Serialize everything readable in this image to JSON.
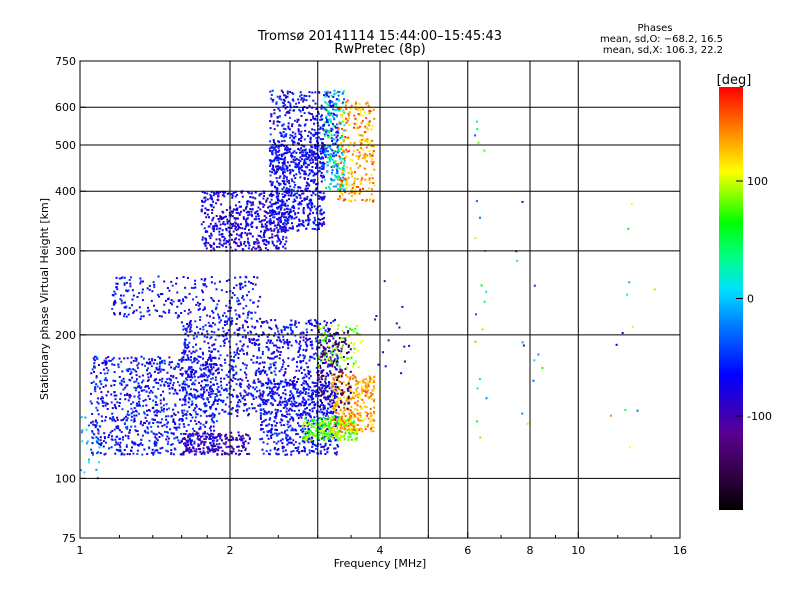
{
  "chart_data": {
    "type": "scatter",
    "title": "Tromsø 20141114  15:44:00–15:45:43",
    "subtitle": "RwPretec (8p)",
    "xlabel": "Frequency [MHz]",
    "ylabel": "Stationary phase Virtual Height [km]",
    "xscale": "log",
    "yscale": "log",
    "xlim": [
      1,
      16
    ],
    "ylim": [
      75,
      750
    ],
    "xticks": [
      1,
      2,
      4,
      6,
      8,
      10,
      16
    ],
    "yticks": [
      75,
      100,
      200,
      300,
      400,
      500,
      600,
      750
    ],
    "grid": true,
    "phases": {
      "heading": "Phases",
      "line_o": "mean, sd,O: −68.2, 16.5",
      "line_x": "mean, sd,X: 106.3, 22.2"
    },
    "colorbar": {
      "label": "[deg]",
      "min": -180,
      "max": 180,
      "ticks": [
        100,
        0,
        -100
      ],
      "colormap": "rainbow (black–purple–blue–cyan–green–yellow–red)"
    },
    "clusters": [
      {
        "x": [
          1.0,
          1.1
        ],
        "y": [
          100,
          135
        ],
        "n": 25,
        "phase": [
          -40,
          30
        ]
      },
      {
        "x": [
          1.05,
          1.9
        ],
        "y": [
          112,
          180
        ],
        "n": 900,
        "phase": [
          -95,
          -35
        ]
      },
      {
        "x": [
          1.6,
          2.2
        ],
        "y": [
          112,
          125
        ],
        "n": 180,
        "phase": [
          -110,
          -80
        ]
      },
      {
        "x": [
          1.6,
          3.3
        ],
        "y": [
          135,
          215
        ],
        "n": 1000,
        "phase": [
          -95,
          -40
        ]
      },
      {
        "x": [
          2.3,
          3.3
        ],
        "y": [
          112,
          160
        ],
        "n": 500,
        "phase": [
          -90,
          -40
        ]
      },
      {
        "x": [
          2.8,
          3.6
        ],
        "y": [
          120,
          135
        ],
        "n": 250,
        "phase": [
          50,
          110
        ]
      },
      {
        "x": [
          3.2,
          3.9
        ],
        "y": [
          125,
          165
        ],
        "n": 300,
        "phase": [
          110,
          160
        ]
      },
      {
        "x": [
          3.0,
          3.5
        ],
        "y": [
          140,
          205
        ],
        "n": 150,
        "phase": [
          -170,
          -115
        ]
      },
      {
        "x": [
          3.0,
          3.7
        ],
        "y": [
          170,
          210
        ],
        "n": 80,
        "phase": [
          60,
          110
        ]
      },
      {
        "x": [
          1.15,
          2.3
        ],
        "y": [
          215,
          265
        ],
        "n": 260,
        "phase": [
          -90,
          -40
        ]
      },
      {
        "x": [
          1.75,
          2.6
        ],
        "y": [
          300,
          400
        ],
        "n": 500,
        "phase": [
          -110,
          -50
        ]
      },
      {
        "x": [
          2.4,
          3.1
        ],
        "y": [
          330,
          500
        ],
        "n": 550,
        "phase": [
          -95,
          -40
        ]
      },
      {
        "x": [
          2.4,
          3.3
        ],
        "y": [
          440,
          650
        ],
        "n": 450,
        "phase": [
          -100,
          -35
        ]
      },
      {
        "x": [
          3.1,
          3.4
        ],
        "y": [
          400,
          650
        ],
        "n": 180,
        "phase": [
          -40,
          60
        ]
      },
      {
        "x": [
          3.3,
          3.9
        ],
        "y": [
          380,
          620
        ],
        "n": 260,
        "phase": [
          100,
          170
        ]
      },
      {
        "x": [
          3.8,
          4.6
        ],
        "y": [
          150,
          260
        ],
        "n": 14,
        "phase": [
          -130,
          -80
        ]
      },
      {
        "x": [
          6.2,
          6.6
        ],
        "y": [
          120,
          580
        ],
        "n": 20,
        "phase": [
          -80,
          140
        ]
      },
      {
        "x": [
          7.4,
          8.5
        ],
        "y": [
          115,
          420
        ],
        "n": 12,
        "phase": [
          -120,
          100
        ]
      },
      {
        "x": [
          11.5,
          14.5
        ],
        "y": [
          110,
          380
        ],
        "n": 12,
        "phase": [
          -100,
          150
        ]
      }
    ]
  }
}
